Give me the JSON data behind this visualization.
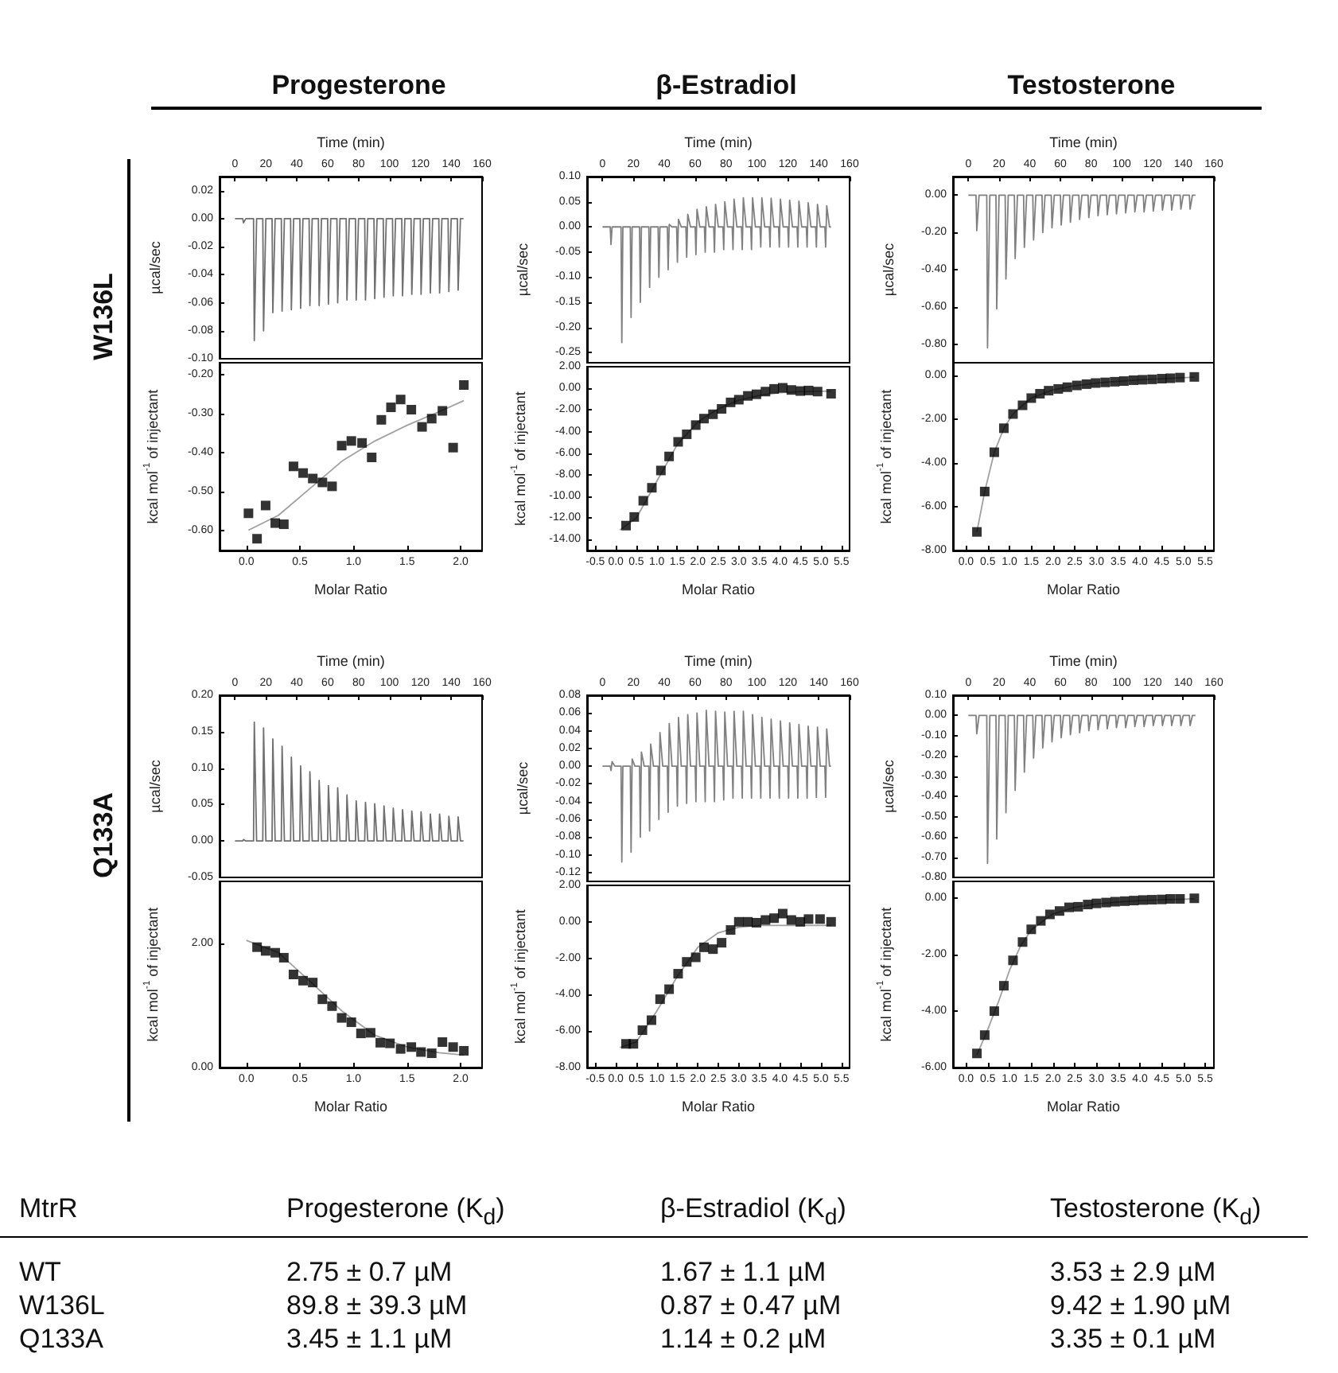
{
  "chart_data": [
    {
      "type": "line",
      "title": "Progesterone",
      "annotations": [
        "W136L"
      ],
      "xlabel": "Time (min)",
      "ylabel": "µcal/sec",
      "xlim": [
        -10,
        160
      ],
      "xticks": [
        0,
        20,
        40,
        60,
        80,
        100,
        120,
        140,
        160
      ],
      "ylim": [
        -0.1,
        0.03
      ],
      "yticks": [
        {
          "value": -0.1,
          "label": "-0.10"
        },
        {
          "value": -0.08,
          "label": "-0.08"
        },
        {
          "value": -0.06,
          "label": "-0.06"
        },
        {
          "value": -0.04,
          "label": "-0.04"
        },
        {
          "value": -0.02,
          "label": "-0.02"
        },
        {
          "value": 0,
          "label": "0.00"
        },
        {
          "value": 0.02,
          "label": "0.02"
        }
      ],
      "color": "#707070",
      "x": [
        0,
        5,
        5.5,
        7,
        12,
        12.5,
        14,
        18,
        18.5,
        20,
        24,
        24.5,
        26,
        30,
        30.5,
        32,
        36,
        36.5,
        38,
        42,
        42.5,
        44,
        48,
        48.5,
        50,
        54,
        54.5,
        56,
        60,
        60.5,
        62,
        66,
        66.5,
        68,
        72,
        72.5,
        74,
        78,
        78.5,
        80,
        84,
        84.5,
        86,
        90,
        90.5,
        92,
        96,
        96.5,
        98,
        102,
        102.5,
        104,
        108,
        108.5,
        110,
        114,
        114.5,
        116,
        120,
        120.5,
        122,
        126,
        126.5,
        128,
        132,
        132.5,
        134,
        138,
        138.5,
        140,
        144,
        144.5,
        146,
        148
      ],
      "values": [
        0,
        0,
        -0.003,
        0,
        0,
        -0.087,
        0,
        0,
        -0.08,
        0,
        0,
        -0.067,
        0,
        0,
        -0.066,
        0,
        0,
        -0.065,
        0,
        0,
        -0.064,
        0,
        0,
        -0.062,
        0,
        0,
        -0.062,
        0,
        0,
        -0.061,
        0,
        0,
        -0.06,
        0,
        0,
        -0.058,
        0,
        0,
        -0.058,
        0,
        0,
        -0.058,
        0,
        0,
        -0.057,
        0,
        0,
        -0.056,
        0,
        0,
        -0.055,
        0,
        0,
        -0.055,
        0,
        0,
        -0.054,
        0,
        0,
        -0.054,
        0,
        0,
        -0.053,
        0,
        0,
        -0.053,
        0,
        0,
        -0.052,
        0,
        0,
        -0.051,
        0,
        0
      ]
    },
    {
      "type": "scatter",
      "xlabel": "Molar Ratio",
      "ylabel": "kcal mol$^{-1}$ of injectant",
      "xlim": [
        -0.25,
        2.2
      ],
      "xticks": [
        {
          "value": 0,
          "label": "0.0"
        },
        {
          "value": 0.5,
          "label": "0.5"
        },
        {
          "value": 1,
          "label": "1.0"
        },
        {
          "value": 1.5,
          "label": "1.5"
        },
        {
          "value": 2,
          "label": "2.0"
        }
      ],
      "ylim": [
        -0.65,
        -0.17
      ],
      "yticks": [
        {
          "value": -0.6,
          "label": "-0.60"
        },
        {
          "value": -0.5,
          "label": "-0.50"
        },
        {
          "value": -0.4,
          "label": "-0.40"
        },
        {
          "value": -0.3,
          "label": "-0.30"
        },
        {
          "value": -0.2,
          "label": "-0.20"
        }
      ],
      "series": [
        {
          "type": "scatter",
          "marker": "square",
          "color": "#000000",
          "x": [
            0.02,
            0.1,
            0.18,
            0.27,
            0.35,
            0.44,
            0.53,
            0.62,
            0.71,
            0.8,
            0.89,
            0.98,
            1.08,
            1.17,
            1.26,
            1.35,
            1.44,
            1.54,
            1.64,
            1.73,
            1.83,
            1.93,
            2.03
          ],
          "values": [
            -0.555,
            -0.62,
            -0.535,
            -0.58,
            -0.583,
            -0.435,
            -0.452,
            -0.466,
            -0.476,
            -0.486,
            -0.382,
            -0.37,
            -0.375,
            -0.412,
            -0.316,
            -0.284,
            -0.264,
            -0.29,
            -0.334,
            -0.313,
            -0.293,
            -0.387,
            -0.227
          ]
        },
        {
          "type": "line",
          "color": "#a0a0a0",
          "x": [
            0.02,
            0.3,
            0.6,
            0.9,
            1.2,
            1.5,
            1.8,
            2.03
          ],
          "values": [
            -0.598,
            -0.56,
            -0.49,
            -0.42,
            -0.37,
            -0.33,
            -0.295,
            -0.267
          ]
        }
      ]
    },
    {
      "type": "line",
      "title": "β-Estradiol",
      "xlabel": "Time (min)",
      "ylabel": "µcal/sec",
      "xlim": [
        -10,
        160
      ],
      "xticks": [
        0,
        20,
        40,
        60,
        80,
        100,
        120,
        140,
        160
      ],
      "ylim": [
        -0.27,
        0.1
      ],
      "yticks": [
        {
          "value": -0.25,
          "label": "-0.25"
        },
        {
          "value": -0.2,
          "label": "-0.20"
        },
        {
          "value": -0.15,
          "label": "-0.15"
        },
        {
          "value": -0.1,
          "label": "-0.10"
        },
        {
          "value": -0.05,
          "label": "-0.05"
        },
        {
          "value": 0,
          "label": "0.00"
        },
        {
          "value": 0.05,
          "label": "0.05"
        },
        {
          "value": 0.1,
          "label": "0.10"
        }
      ],
      "color": "#808080",
      "x": [
        0,
        5,
        5.5,
        6.2,
        8,
        12,
        12.5,
        13.2,
        15,
        18,
        18.5,
        19.2,
        21,
        24,
        24.5,
        25.2,
        27,
        30,
        30.5,
        31.2,
        33,
        36,
        36.5,
        37.2,
        39,
        42,
        42.5,
        43.2,
        45,
        48,
        48.5,
        49.2,
        51,
        54,
        54.5,
        55.2,
        57,
        60,
        60.5,
        61.2,
        63,
        66,
        66.5,
        67.2,
        69,
        72,
        72.5,
        73.2,
        75,
        78,
        78.5,
        79.2,
        81,
        84,
        84.5,
        85.2,
        87,
        90,
        90.5,
        91.2,
        93,
        96,
        96.5,
        97.2,
        99,
        102,
        102.5,
        103.2,
        105,
        108,
        108.5,
        109.2,
        111,
        114,
        114.5,
        115.2,
        117,
        120,
        120.5,
        121.2,
        123,
        126,
        126.5,
        127.2,
        129,
        132,
        132.5,
        133.2,
        135,
        138,
        138.5,
        139.2,
        141,
        144,
        144.5,
        145.2,
        147,
        148
      ],
      "values": [
        0,
        0,
        -0.035,
        0,
        0,
        0,
        -0.23,
        0,
        0,
        0,
        -0.18,
        0,
        0,
        0,
        -0.15,
        0,
        0,
        0,
        -0.12,
        0,
        0,
        0,
        -0.1,
        0,
        0,
        0,
        -0.085,
        0.005,
        0,
        0,
        -0.07,
        0.015,
        0,
        0,
        -0.06,
        0.025,
        0,
        0,
        -0.055,
        0.035,
        0,
        0,
        -0.05,
        0.04,
        0,
        0,
        -0.05,
        0.045,
        0,
        0,
        -0.045,
        0.05,
        0,
        0,
        -0.045,
        0.055,
        0,
        0,
        -0.045,
        0.058,
        0,
        0,
        -0.045,
        0.058,
        0,
        0,
        -0.04,
        0.058,
        0,
        0,
        -0.04,
        0.057,
        0,
        0,
        -0.04,
        0.055,
        0,
        0,
        -0.04,
        0.053,
        0,
        0,
        -0.04,
        0.051,
        0,
        0,
        -0.04,
        0.048,
        0,
        0,
        -0.04,
        0.045,
        0,
        0,
        -0.04,
        0.042,
        0,
        0
      ]
    },
    {
      "type": "scatter",
      "xlabel": "Molar Ratio",
      "ylabel": "kcal mol$^{-1}$ of injectant",
      "xlim": [
        -0.7,
        5.7
      ],
      "xticks": [
        {
          "value": -0.5,
          "label": "-0.5"
        },
        {
          "value": 0,
          "label": "0.0"
        },
        {
          "value": 0.5,
          "label": "0.5"
        },
        {
          "value": 1,
          "label": "1.0"
        },
        {
          "value": 1.5,
          "label": "1.5"
        },
        {
          "value": 2,
          "label": "2.0"
        },
        {
          "value": 2.5,
          "label": "2.5"
        },
        {
          "value": 3,
          "label": "3.0"
        },
        {
          "value": 3.5,
          "label": "3.5"
        },
        {
          "value": 4,
          "label": "4.0"
        },
        {
          "value": 4.5,
          "label": "4.5"
        },
        {
          "value": 5,
          "label": "5.0"
        },
        {
          "value": 5.5,
          "label": "5.5"
        }
      ],
      "ylim": [
        -15,
        2
      ],
      "yticks": [
        {
          "value": -14,
          "label": "-14.00"
        },
        {
          "value": -12,
          "label": "-12.00"
        },
        {
          "value": -10,
          "label": "-10.00"
        },
        {
          "value": -8,
          "label": "-8.00"
        },
        {
          "value": -6,
          "label": "-6.00"
        },
        {
          "value": -4,
          "label": "-4.00"
        },
        {
          "value": -2,
          "label": "-2.00"
        },
        {
          "value": 0,
          "label": "0.00"
        },
        {
          "value": 2,
          "label": "2.00"
        }
      ],
      "series": [
        {
          "type": "scatter",
          "marker": "square",
          "color": "#000000",
          "x": [
            0.25,
            0.45,
            0.67,
            0.88,
            1.1,
            1.3,
            1.52,
            1.73,
            1.95,
            2.15,
            2.37,
            2.58,
            2.8,
            3.0,
            3.22,
            3.43,
            3.65,
            3.86,
            4.07,
            4.28,
            4.5,
            4.7,
            4.92,
            5.25
          ],
          "values": [
            -12.7,
            -11.9,
            -10.4,
            -9.2,
            -7.6,
            -6.3,
            -4.95,
            -4.25,
            -3.4,
            -2.8,
            -2.4,
            -1.9,
            -1.3,
            -1.05,
            -0.7,
            -0.55,
            -0.3,
            -0.05,
            0.05,
            -0.15,
            -0.25,
            -0.2,
            -0.3,
            -0.5
          ]
        },
        {
          "type": "line",
          "color": "#a0a0a0",
          "x": [
            0.1,
            0.5,
            1,
            1.5,
            2,
            2.5,
            3,
            3.5,
            4,
            4.5,
            5.25
          ],
          "values": [
            -13.1,
            -12.0,
            -8.6,
            -5.2,
            -3.1,
            -1.9,
            -1.1,
            -0.65,
            -0.4,
            -0.3,
            -0.25
          ]
        }
      ]
    },
    {
      "type": "line",
      "title": "Testosterone",
      "xlabel": "Time (min)",
      "ylabel": "µcal/sec",
      "xlim": [
        -10,
        160
      ],
      "xticks": [
        0,
        20,
        40,
        60,
        80,
        100,
        120,
        140,
        160
      ],
      "ylim": [
        -0.9,
        0.1
      ],
      "yticks": [
        {
          "value": -0.8,
          "label": "-0.80"
        },
        {
          "value": -0.6,
          "label": "-0.60"
        },
        {
          "value": -0.4,
          "label": "-0.40"
        },
        {
          "value": -0.2,
          "label": "-0.20"
        },
        {
          "value": 0,
          "label": "0.00"
        }
      ],
      "color": "#808080",
      "x": [
        0,
        5,
        5.5,
        7,
        12,
        12.5,
        14,
        18,
        18.5,
        20,
        24,
        24.5,
        26,
        30,
        30.5,
        32,
        36,
        36.5,
        38,
        42,
        42.5,
        44,
        48,
        48.5,
        50,
        54,
        54.5,
        56,
        60,
        60.5,
        62,
        66,
        66.5,
        68,
        72,
        72.5,
        74,
        78,
        78.5,
        80,
        84,
        84.5,
        86,
        90,
        90.5,
        92,
        96,
        96.5,
        98,
        102,
        102.5,
        104,
        108,
        108.5,
        110,
        114,
        114.5,
        116,
        120,
        120.5,
        122,
        126,
        126.5,
        128,
        132,
        132.5,
        134,
        138,
        138.5,
        140,
        144,
        144.5,
        146,
        148
      ],
      "values": [
        0,
        0,
        -0.19,
        0,
        0,
        -0.82,
        0,
        0,
        -0.61,
        0,
        0,
        -0.45,
        0,
        0,
        -0.34,
        0,
        0,
        -0.28,
        0,
        0,
        -0.24,
        0,
        0,
        -0.2,
        0,
        0,
        -0.175,
        0,
        0,
        -0.16,
        0,
        0,
        -0.145,
        0,
        0,
        -0.13,
        0,
        0,
        -0.12,
        0,
        0,
        -0.11,
        0,
        0,
        -0.105,
        0,
        0,
        -0.1,
        0,
        0,
        -0.095,
        0,
        0,
        -0.09,
        0,
        0,
        -0.09,
        0,
        0,
        -0.085,
        0,
        0,
        -0.08,
        0,
        0,
        -0.08,
        0,
        0,
        -0.075,
        0,
        0,
        -0.075,
        0,
        0
      ]
    },
    {
      "type": "scatter",
      "xlabel": "Molar Ratio",
      "ylabel": "kcal mol$^{-1}$ of injectant",
      "xlim": [
        -0.3,
        5.7
      ],
      "xticks": [
        {
          "value": 0,
          "label": "0.0"
        },
        {
          "value": 0.5,
          "label": "0.5"
        },
        {
          "value": 1,
          "label": "1.0"
        },
        {
          "value": 1.5,
          "label": "1.5"
        },
        {
          "value": 2,
          "label": "2.0"
        },
        {
          "value": 2.5,
          "label": "2.5"
        },
        {
          "value": 3,
          "label": "3.0"
        },
        {
          "value": 3.5,
          "label": "3.5"
        },
        {
          "value": 4,
          "label": "4.0"
        },
        {
          "value": 4.5,
          "label": "4.5"
        },
        {
          "value": 5,
          "label": "5.0"
        },
        {
          "value": 5.5,
          "label": "5.5"
        }
      ],
      "ylim": [
        -8,
        0.6
      ],
      "yticks": [
        {
          "value": -8,
          "label": "-8.00"
        },
        {
          "value": -6,
          "label": "-6.00"
        },
        {
          "value": -4,
          "label": "-4.00"
        },
        {
          "value": -2,
          "label": "-2.00"
        },
        {
          "value": 0,
          "label": "0.00"
        }
      ],
      "series": [
        {
          "type": "scatter",
          "marker": "square",
          "color": "#000000",
          "x": [
            0.25,
            0.43,
            0.65,
            0.87,
            1.08,
            1.3,
            1.5,
            1.7,
            1.9,
            2.12,
            2.33,
            2.55,
            2.77,
            2.98,
            3.2,
            3.42,
            3.63,
            3.85,
            4.06,
            4.28,
            4.5,
            4.7,
            4.92,
            5.25
          ],
          "values": [
            -7.15,
            -5.3,
            -3.5,
            -2.4,
            -1.75,
            -1.35,
            -1.02,
            -0.82,
            -0.68,
            -0.6,
            -0.52,
            -0.44,
            -0.38,
            -0.33,
            -0.3,
            -0.27,
            -0.24,
            -0.2,
            -0.18,
            -0.16,
            -0.13,
            -0.11,
            -0.08,
            -0.05
          ]
        },
        {
          "type": "line",
          "color": "#a0a0a0",
          "x": [
            0.25,
            0.43,
            0.65,
            0.87,
            1.08,
            1.3,
            1.5,
            2,
            2.5,
            3,
            3.5,
            4,
            4.5,
            5.25
          ],
          "values": [
            -7.15,
            -5.3,
            -3.5,
            -2.4,
            -1.75,
            -1.35,
            -1.02,
            -0.64,
            -0.45,
            -0.33,
            -0.25,
            -0.18,
            -0.13,
            -0.06
          ]
        }
      ]
    },
    {
      "type": "line",
      "annotations": [
        "Q133A"
      ],
      "xlabel": "Time (min)",
      "ylabel": "µcal/sec",
      "xlim": [
        -10,
        160
      ],
      "xticks": [
        0,
        20,
        40,
        60,
        80,
        100,
        120,
        140,
        160
      ],
      "ylim": [
        -0.05,
        0.2
      ],
      "yticks": [
        {
          "value": -0.05,
          "label": "-0.05"
        },
        {
          "value": 0,
          "label": "0.00"
        },
        {
          "value": 0.05,
          "label": "0.05"
        },
        {
          "value": 0.1,
          "label": "0.10"
        },
        {
          "value": 0.15,
          "label": "0.15"
        },
        {
          "value": 0.2,
          "label": "0.20"
        }
      ],
      "color": "#707070",
      "x": [
        0,
        5,
        5.5,
        7,
        12,
        12.5,
        14,
        18,
        18.5,
        20,
        24,
        24.5,
        26,
        30,
        30.5,
        32,
        36,
        36.5,
        38,
        42,
        42.5,
        44,
        48,
        48.5,
        50,
        54,
        54.5,
        56,
        60,
        60.5,
        62,
        66,
        66.5,
        68,
        72,
        72.5,
        74,
        78,
        78.5,
        80,
        84,
        84.5,
        86,
        90,
        90.5,
        92,
        96,
        96.5,
        98,
        102,
        102.5,
        104,
        108,
        108.5,
        110,
        114,
        114.5,
        116,
        120,
        120.5,
        122,
        126,
        126.5,
        128,
        132,
        132.5,
        134,
        138,
        138.5,
        140,
        144,
        144.5,
        146,
        148
      ],
      "values": [
        0,
        0,
        0.002,
        0,
        0,
        0.163,
        0,
        0,
        0.155,
        0,
        0,
        0.14,
        0,
        0,
        0.13,
        0,
        0,
        0.115,
        0,
        0,
        0.103,
        0,
        0,
        0.095,
        0,
        0,
        0.083,
        0,
        0,
        0.076,
        0,
        0,
        0.073,
        0,
        0,
        0.063,
        0,
        0,
        0.055,
        0,
        0,
        0.053,
        0,
        0,
        0.051,
        0,
        0,
        0.048,
        0,
        0,
        0.045,
        0,
        0,
        0.043,
        0,
        0,
        0.041,
        0,
        0,
        0.04,
        0,
        0,
        0.037,
        0,
        0,
        0.037,
        0,
        0,
        0.034,
        0,
        0,
        0.033,
        0,
        0
      ]
    },
    {
      "type": "scatter",
      "xlabel": "Molar Ratio",
      "ylabel": "kcal mol$^{-1}$ of injectant",
      "xlim": [
        -0.25,
        2.2
      ],
      "xticks": [
        {
          "value": 0,
          "label": "0.0"
        },
        {
          "value": 0.5,
          "label": "0.5"
        },
        {
          "value": 1,
          "label": "1.0"
        },
        {
          "value": 1.5,
          "label": "1.5"
        },
        {
          "value": 2,
          "label": "2.0"
        }
      ],
      "ylim": [
        0,
        3
      ],
      "yticks": [
        {
          "value": 0,
          "label": "0.00"
        },
        {
          "value": 2,
          "label": "2.00"
        }
      ],
      "series": [
        {
          "type": "scatter",
          "marker": "square",
          "color": "#000000",
          "x": [
            0.1,
            0.18,
            0.27,
            0.35,
            0.44,
            0.53,
            0.62,
            0.71,
            0.8,
            0.89,
            0.98,
            1.07,
            1.16,
            1.25,
            1.34,
            1.44,
            1.54,
            1.63,
            1.73,
            1.83,
            1.93,
            2.03
          ],
          "values": [
            1.94,
            1.88,
            1.85,
            1.77,
            1.5,
            1.4,
            1.37,
            1.1,
            0.99,
            0.8,
            0.73,
            0.55,
            0.56,
            0.4,
            0.39,
            0.3,
            0.33,
            0.25,
            0.23,
            0.41,
            0.33,
            0.27
          ]
        },
        {
          "type": "line",
          "color": "#a0a0a0",
          "x": [
            0,
            0.3,
            0.6,
            0.9,
            1.2,
            1.5,
            1.8,
            2.03
          ],
          "values": [
            2.05,
            1.85,
            1.38,
            0.9,
            0.52,
            0.33,
            0.24,
            0.2
          ]
        }
      ]
    },
    {
      "type": "line",
      "xlabel": "Time (min)",
      "ylabel": "µcal/sec",
      "xlim": [
        -10,
        160
      ],
      "xticks": [
        0,
        20,
        40,
        60,
        80,
        100,
        120,
        140,
        160
      ],
      "ylim": [
        -0.13,
        0.08
      ],
      "yticks": [
        {
          "value": -0.12,
          "label": "-0.12"
        },
        {
          "value": -0.1,
          "label": "-0.10"
        },
        {
          "value": -0.08,
          "label": "-0.08"
        },
        {
          "value": -0.06,
          "label": "-0.06"
        },
        {
          "value": -0.04,
          "label": "-0.04"
        },
        {
          "value": -0.02,
          "label": "-0.02"
        },
        {
          "value": 0,
          "label": "0.00"
        },
        {
          "value": 0.02,
          "label": "0.02"
        },
        {
          "value": 0.04,
          "label": "0.04"
        },
        {
          "value": 0.06,
          "label": "0.06"
        },
        {
          "value": 0.08,
          "label": "0.08"
        }
      ],
      "color": "#808080",
      "x": [
        0,
        5,
        5.5,
        6.2,
        8,
        12,
        12.5,
        13.2,
        15,
        18,
        18.5,
        19.2,
        21,
        24,
        24.5,
        25.2,
        27,
        30,
        30.5,
        31.2,
        33,
        36,
        36.5,
        37.2,
        39,
        42,
        42.5,
        43.2,
        45,
        48,
        48.5,
        49.2,
        51,
        54,
        54.5,
        55.2,
        57,
        60,
        60.5,
        61.2,
        63,
        66,
        66.5,
        67.2,
        69,
        72,
        72.5,
        73.2,
        75,
        78,
        78.5,
        79.2,
        81,
        84,
        84.5,
        85.2,
        87,
        90,
        90.5,
        91.2,
        93,
        96,
        96.5,
        97.2,
        99,
        102,
        102.5,
        103.2,
        105,
        108,
        108.5,
        109.2,
        111,
        114,
        114.5,
        115.2,
        117,
        120,
        120.5,
        121.2,
        123,
        126,
        126.5,
        127.2,
        129,
        132,
        132.5,
        133.2,
        135,
        138,
        138.5,
        139.2,
        141,
        144,
        144.5,
        145.2,
        147,
        148
      ],
      "values": [
        0,
        0,
        -0.005,
        0.005,
        0,
        0,
        -0.108,
        0,
        0,
        0,
        -0.097,
        0.008,
        0,
        0,
        -0.08,
        0.016,
        0,
        0,
        -0.073,
        0.025,
        0,
        0,
        -0.06,
        0.038,
        0,
        0,
        -0.052,
        0.048,
        0,
        0,
        -0.045,
        0.055,
        0,
        0,
        -0.042,
        0.058,
        0,
        0,
        -0.04,
        0.06,
        0,
        0,
        -0.04,
        0.063,
        0,
        0,
        -0.04,
        0.062,
        0,
        0,
        -0.038,
        0.061,
        0,
        0,
        -0.036,
        0.062,
        0,
        0,
        -0.036,
        0.062,
        0,
        0,
        -0.036,
        0.058,
        0,
        0,
        -0.036,
        0.055,
        0,
        0,
        -0.036,
        0.053,
        0,
        0,
        -0.036,
        0.051,
        0,
        0,
        -0.036,
        0.049,
        0,
        0,
        -0.036,
        0.047,
        0,
        0,
        -0.036,
        0.045,
        0,
        0,
        -0.035,
        0.044,
        0,
        0,
        -0.035,
        0.042,
        0,
        0
      ]
    },
    {
      "type": "scatter",
      "xlabel": "Molar Ratio",
      "ylabel": "kcal mol$^{-1}$ of injectant",
      "xlim": [
        -0.7,
        5.7
      ],
      "xticks": [
        {
          "value": -0.5,
          "label": "-0.5"
        },
        {
          "value": 0,
          "label": "0.0"
        },
        {
          "value": 0.5,
          "label": "0.5"
        },
        {
          "value": 1,
          "label": "1.0"
        },
        {
          "value": 1.5,
          "label": "1.5"
        },
        {
          "value": 2,
          "label": "2.0"
        },
        {
          "value": 2.5,
          "label": "2.5"
        },
        {
          "value": 3,
          "label": "3.0"
        },
        {
          "value": 3.5,
          "label": "3.5"
        },
        {
          "value": 4,
          "label": "4.0"
        },
        {
          "value": 4.5,
          "label": "4.5"
        },
        {
          "value": 5,
          "label": "5.0"
        },
        {
          "value": 5.5,
          "label": "5.5"
        }
      ],
      "ylim": [
        -8,
        2
      ],
      "yticks": [
        {
          "value": -8,
          "label": "-8.00"
        },
        {
          "value": -6,
          "label": "-6.00"
        },
        {
          "value": -4,
          "label": "-4.00"
        },
        {
          "value": -2,
          "label": "-2.00"
        },
        {
          "value": 0,
          "label": "0.00"
        },
        {
          "value": 2,
          "label": "2.00"
        }
      ],
      "series": [
        {
          "type": "scatter",
          "marker": "square",
          "color": "#000000",
          "x": [
            0.25,
            0.43,
            0.65,
            0.87,
            1.08,
            1.3,
            1.52,
            1.73,
            1.95,
            2.15,
            2.37,
            2.58,
            2.8,
            3.0,
            3.22,
            3.43,
            3.65,
            3.86,
            4.07,
            4.28,
            4.5,
            4.7,
            4.98,
            5.25
          ],
          "values": [
            -6.7,
            -6.7,
            -5.95,
            -5.4,
            -4.25,
            -3.7,
            -2.85,
            -2.2,
            -1.95,
            -1.4,
            -1.5,
            -1.15,
            -0.45,
            0.0,
            0.0,
            -0.05,
            0.1,
            0.2,
            0.45,
            0.1,
            0.0,
            0.15,
            0.15,
            0.0
          ]
        },
        {
          "type": "line",
          "color": "#a0a0a0",
          "x": [
            0.1,
            0.5,
            1,
            1.5,
            2,
            2.5,
            3,
            3.5,
            4,
            4.5,
            5.25
          ],
          "values": [
            -6.9,
            -6.6,
            -4.9,
            -3.0,
            -1.4,
            -0.6,
            -0.3,
            -0.2,
            -0.2,
            -0.2,
            -0.2
          ]
        }
      ]
    },
    {
      "type": "line",
      "xlabel": "Time (min)",
      "ylabel": "µcal/sec",
      "xlim": [
        -10,
        160
      ],
      "xticks": [
        0,
        20,
        40,
        60,
        80,
        100,
        120,
        140,
        160
      ],
      "ylim": [
        -0.8,
        0.1
      ],
      "yticks": [
        {
          "value": -0.8,
          "label": "-0.80"
        },
        {
          "value": -0.7,
          "label": "-0.70"
        },
        {
          "value": -0.6,
          "label": "-0.60"
        },
        {
          "value": -0.5,
          "label": "-0.50"
        },
        {
          "value": -0.4,
          "label": "-0.40"
        },
        {
          "value": -0.3,
          "label": "-0.30"
        },
        {
          "value": -0.2,
          "label": "-0.20"
        },
        {
          "value": -0.1,
          "label": "-0.10"
        },
        {
          "value": 0,
          "label": "0.00"
        },
        {
          "value": 0.1,
          "label": "0.10"
        }
      ],
      "color": "#808080",
      "x": [
        0,
        5,
        5.5,
        7,
        12,
        12.5,
        14,
        18,
        18.5,
        20,
        24,
        24.5,
        26,
        30,
        30.5,
        32,
        36,
        36.5,
        38,
        42,
        42.5,
        44,
        48,
        48.5,
        50,
        54,
        54.5,
        56,
        60,
        60.5,
        62,
        66,
        66.5,
        68,
        72,
        72.5,
        74,
        78,
        78.5,
        80,
        84,
        84.5,
        86,
        90,
        90.5,
        92,
        96,
        96.5,
        98,
        102,
        102.5,
        104,
        108,
        108.5,
        110,
        114,
        114.5,
        116,
        120,
        120.5,
        122,
        126,
        126.5,
        128,
        132,
        132.5,
        134,
        138,
        138.5,
        140,
        144,
        144.5,
        146,
        148
      ],
      "values": [
        0,
        0,
        -0.09,
        0,
        0,
        -0.73,
        0,
        0,
        -0.61,
        0,
        0,
        -0.48,
        0,
        0,
        -0.37,
        0,
        0,
        -0.28,
        0,
        0,
        -0.21,
        0,
        0,
        -0.16,
        0,
        0,
        -0.13,
        0,
        0,
        -0.11,
        0,
        0,
        -0.095,
        0,
        0,
        -0.085,
        0,
        0,
        -0.075,
        0,
        0,
        -0.07,
        0,
        0,
        -0.065,
        0,
        0,
        -0.06,
        0,
        0,
        -0.06,
        0,
        0,
        -0.055,
        0,
        0,
        -0.055,
        0,
        0,
        -0.05,
        0,
        0,
        -0.05,
        0,
        0,
        -0.05,
        0,
        0,
        -0.05,
        0,
        0,
        -0.05,
        0,
        0
      ]
    },
    {
      "type": "scatter",
      "xlabel": "Molar Ratio",
      "ylabel": "kcal mol$^{-1}$ of injectant",
      "xlim": [
        -0.3,
        5.7
      ],
      "xticks": [
        {
          "value": 0,
          "label": "0.0"
        },
        {
          "value": 0.5,
          "label": "0.5"
        },
        {
          "value": 1,
          "label": "1.0"
        },
        {
          "value": 1.5,
          "label": "1.5"
        },
        {
          "value": 2,
          "label": "2.0"
        },
        {
          "value": 2.5,
          "label": "2.5"
        },
        {
          "value": 3,
          "label": "3.0"
        },
        {
          "value": 3.5,
          "label": "3.5"
        },
        {
          "value": 4,
          "label": "4.0"
        },
        {
          "value": 4.5,
          "label": "4.5"
        },
        {
          "value": 5,
          "label": "5.0"
        },
        {
          "value": 5.5,
          "label": "5.5"
        }
      ],
      "ylim": [
        -6,
        0.6
      ],
      "yticks": [
        {
          "value": -6,
          "label": "-6.00"
        },
        {
          "value": -4,
          "label": "-4.00"
        },
        {
          "value": -2,
          "label": "-2.00"
        },
        {
          "value": 0,
          "label": "0.00"
        }
      ],
      "series": [
        {
          "type": "scatter",
          "marker": "square",
          "color": "#000000",
          "x": [
            0.25,
            0.43,
            0.65,
            0.87,
            1.08,
            1.3,
            1.5,
            1.72,
            1.93,
            2.15,
            2.37,
            2.58,
            2.8,
            3.0,
            3.22,
            3.43,
            3.65,
            3.86,
            4.07,
            4.28,
            4.5,
            4.7,
            4.92,
            5.25
          ],
          "values": [
            -5.5,
            -4.85,
            -4.0,
            -3.1,
            -2.2,
            -1.55,
            -1.1,
            -0.8,
            -0.57,
            -0.45,
            -0.32,
            -0.3,
            -0.22,
            -0.18,
            -0.15,
            -0.12,
            -0.1,
            -0.08,
            -0.06,
            -0.05,
            -0.04,
            -0.02,
            -0.02,
            0.0
          ]
        },
        {
          "type": "line",
          "color": "#a0a0a0",
          "x": [
            0.25,
            0.5,
            0.75,
            1,
            1.25,
            1.5,
            2,
            2.5,
            3,
            3.5,
            4,
            4.5,
            5.25
          ],
          "values": [
            -5.55,
            -4.65,
            -3.65,
            -2.55,
            -1.7,
            -1.12,
            -0.55,
            -0.32,
            -0.2,
            -0.13,
            -0.08,
            -0.05,
            -0.02
          ]
        }
      ]
    },
    {
      "type": "other",
      "annotations": [
        "MtrR",
        "Progesterone (K$_{d}$)",
        "β-Estradiol (K$_{d}$)",
        "Testosterone (K$_{d}$)",
        "WT",
        "2.75 ± 0.7 µM",
        "1.67 ± 1.1 µM",
        "3.53 ± 2.9 µM",
        "W136L",
        "89.8 ± 39.3 µM",
        "0.87 ± 0.47 µM",
        "9.42 ± 1.90 µM",
        "Q133A",
        "3.45 ± 1.1 µM",
        "1.14 ± 0.2 µM",
        "3.35 ± 0.1 µM"
      ]
    }
  ]
}
